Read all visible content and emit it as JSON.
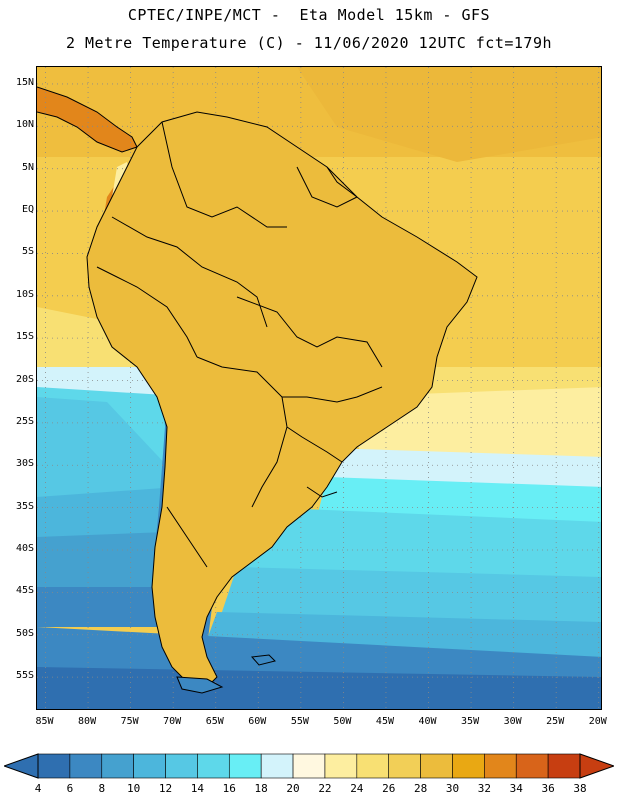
{
  "header": {
    "line1": "CPTEC/INPE/MCT -  Eta Model 15km - GFS",
    "line2": "2 Metre Temperature (C) - 11/06/2020 12UTC fct=179h"
  },
  "map": {
    "lat_labels": [
      "15N",
      "10N",
      "5N",
      "EQ",
      "5S",
      "10S",
      "15S",
      "20S",
      "25S",
      "30S",
      "35S",
      "40S",
      "45S",
      "50S",
      "55S"
    ],
    "lon_labels": [
      "85W",
      "80W",
      "75W",
      "70W",
      "65W",
      "60W",
      "55W",
      "50W",
      "45W",
      "40W",
      "35W",
      "30W",
      "25W",
      "20W"
    ],
    "extent": {
      "lon_min": -86,
      "lon_max": -19.5,
      "lat_min": -59,
      "lat_max": 17
    }
  },
  "colorbar": {
    "labels": [
      "4",
      "6",
      "8",
      "10",
      "12",
      "14",
      "16",
      "18",
      "20",
      "22",
      "24",
      "26",
      "28",
      "30",
      "32",
      "34",
      "36",
      "38"
    ],
    "colors": [
      "#2f6fb0",
      "#3c88c2",
      "#45a1cf",
      "#4cb6dc",
      "#56c8e4",
      "#5ed8ea",
      "#68eef5",
      "#d3f3fb",
      "#fff8e0",
      "#fdeea0",
      "#f8e073",
      "#f2cf57",
      "#ecbc3c",
      "#e9a813",
      "#e2861b",
      "#d8641a",
      "#c73e11"
    ],
    "low_arrow_color": "#2f6fb0",
    "high_arrow_color": "#c73e11"
  }
}
